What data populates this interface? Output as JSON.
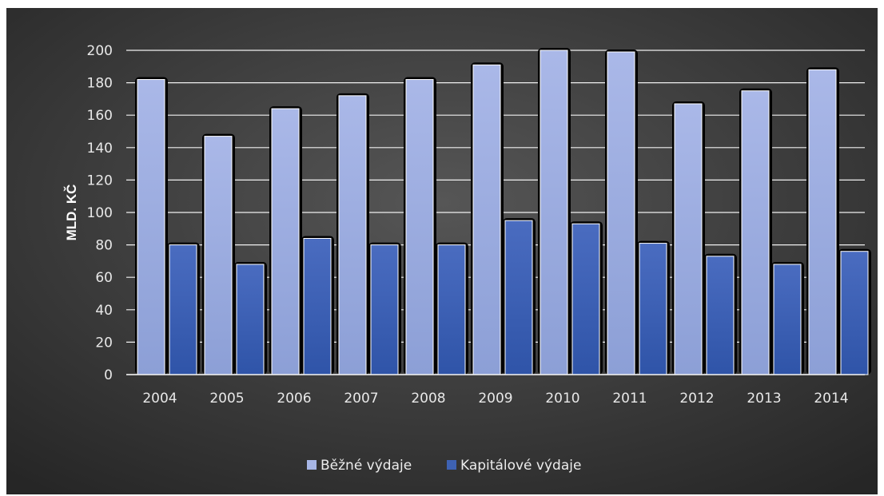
{
  "chart_data": {
    "type": "bar",
    "categories": [
      "2004",
      "2005",
      "2006",
      "2007",
      "2008",
      "2009",
      "2010",
      "2011",
      "2012",
      "2013",
      "2014"
    ],
    "series": [
      {
        "name": "Běžné výdaje",
        "values": [
          182,
          147,
          164,
          172,
          182,
          191,
          200,
          199,
          167,
          175,
          188
        ],
        "color": "#a7b6e6"
      },
      {
        "name": "Kapitálové výdaje",
        "values": [
          80,
          68,
          84,
          80,
          80,
          95,
          93,
          81,
          73,
          68,
          76
        ],
        "color": "#3e62b3"
      }
    ],
    "title": "",
    "xlabel": "",
    "ylabel": "MLD. KČ",
    "ylim": [
      0,
      200
    ],
    "yticks": [
      0,
      20,
      40,
      60,
      80,
      100,
      120,
      140,
      160,
      180,
      200
    ],
    "grid": true,
    "legend": "bottom-center",
    "background": "#3a3a3a"
  }
}
